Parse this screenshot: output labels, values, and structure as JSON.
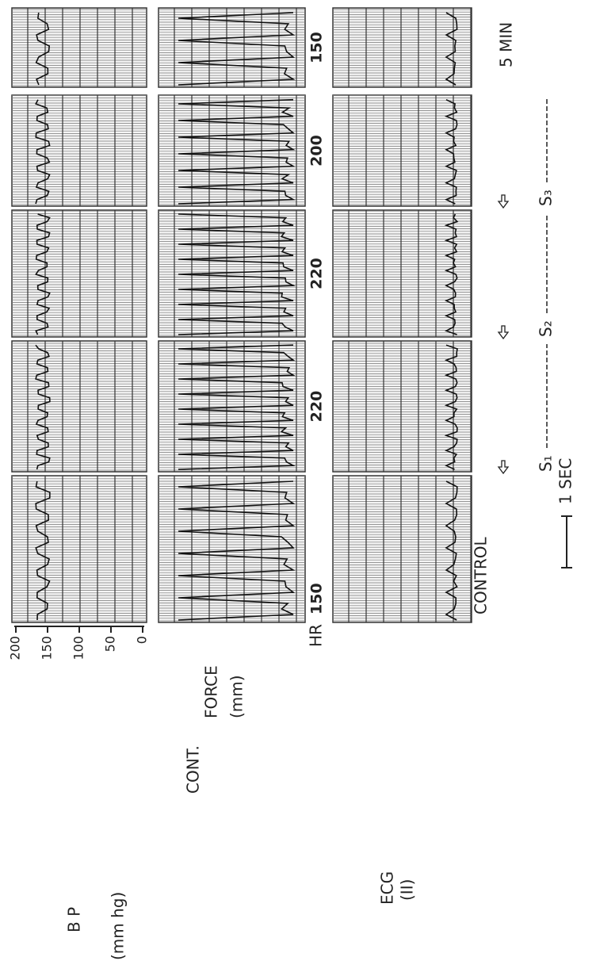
{
  "figure": {
    "bp": {
      "label": "B P",
      "unit": "(mm hg)",
      "ticks": [
        "200",
        "150",
        "100",
        "50",
        "0"
      ]
    },
    "force": {
      "label": "CONT.",
      "label2": "FORCE",
      "unit": "(mm)"
    },
    "hr": "HR",
    "ecg": {
      "label": "ECG",
      "lead": "(II)"
    },
    "columns": [
      {
        "label": "CONTROL",
        "hr": "150"
      },
      {
        "hr": "220",
        "stage": "S₁"
      },
      {
        "hr": "220",
        "stage": "S₂"
      },
      {
        "hr": "200",
        "stage": "S₃"
      },
      {
        "hr": "150",
        "stage": "5 MIN"
      }
    ],
    "scale": "1 SEC"
  }
}
